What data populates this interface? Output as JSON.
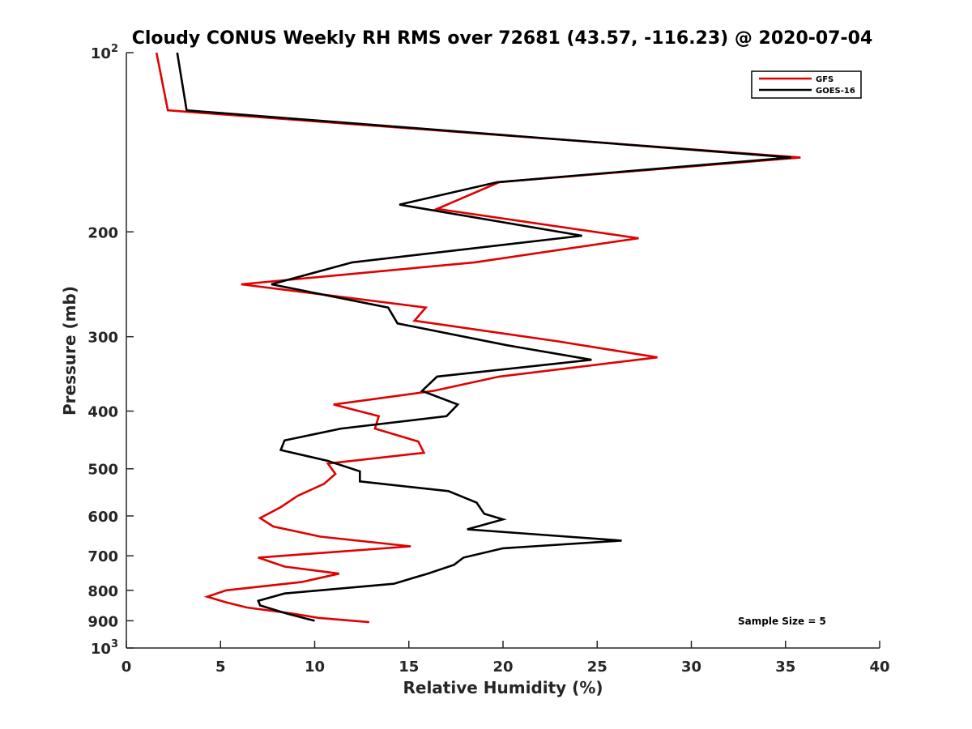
{
  "chart_data": {
    "type": "line",
    "title": "Cloudy CONUS Weekly RH RMS over 72681 (43.57, -116.23) @ 2020-07-04",
    "xlabel": "Relative Humidity (%)",
    "ylabel": "Pressure (mb)",
    "xlim": [
      0,
      40
    ],
    "ylim": [
      100,
      1000
    ],
    "y_scale": "log",
    "y_reversed": true,
    "grid": false,
    "legend_position": "top-right",
    "x_ticks": [
      0,
      5,
      10,
      15,
      20,
      25,
      30,
      35,
      40
    ],
    "y_ticks": [
      {
        "value": 100,
        "label": "10",
        "sup": "2"
      },
      {
        "value": 200,
        "label": "200",
        "sup": ""
      },
      {
        "value": 300,
        "label": "300",
        "sup": ""
      },
      {
        "value": 400,
        "label": "400",
        "sup": ""
      },
      {
        "value": 500,
        "label": "500",
        "sup": ""
      },
      {
        "value": 600,
        "label": "600",
        "sup": ""
      },
      {
        "value": 700,
        "label": "700",
        "sup": ""
      },
      {
        "value": 800,
        "label": "800",
        "sup": ""
      },
      {
        "value": 900,
        "label": "900",
        "sup": ""
      },
      {
        "value": 1000,
        "label": "10",
        "sup": "3"
      }
    ],
    "series": [
      {
        "name": "GFS",
        "color": "#e00000",
        "points": [
          [
            1.6,
            100
          ],
          [
            2.2,
            125
          ],
          [
            35.8,
            150
          ],
          [
            19.8,
            165
          ],
          [
            16.5,
            183
          ],
          [
            27.2,
            205
          ],
          [
            18.5,
            225
          ],
          [
            6.1,
            245
          ],
          [
            15.9,
            268
          ],
          [
            15.3,
            282
          ],
          [
            22.8,
            305
          ],
          [
            28.2,
            325
          ],
          [
            19.8,
            350
          ],
          [
            16.3,
            370
          ],
          [
            11.0,
            390
          ],
          [
            13.4,
            408
          ],
          [
            13.2,
            428
          ],
          [
            15.5,
            450
          ],
          [
            15.8,
            470
          ],
          [
            10.7,
            490
          ],
          [
            11.1,
            510
          ],
          [
            10.5,
            530
          ],
          [
            9.1,
            555
          ],
          [
            8.2,
            580
          ],
          [
            7.1,
            605
          ],
          [
            7.8,
            625
          ],
          [
            10.3,
            650
          ],
          [
            15.1,
            675
          ],
          [
            7.0,
            705
          ],
          [
            8.4,
            730
          ],
          [
            11.3,
            750
          ],
          [
            9.3,
            775
          ],
          [
            5.3,
            800
          ],
          [
            4.3,
            820
          ],
          [
            5.3,
            838
          ],
          [
            6.4,
            855
          ],
          [
            8.8,
            875
          ],
          [
            10.2,
            890
          ],
          [
            12.9,
            905
          ]
        ]
      },
      {
        "name": "GOES-16",
        "color": "#000000",
        "points": [
          [
            2.7,
            100
          ],
          [
            3.2,
            125
          ],
          [
            35.3,
            150
          ],
          [
            19.7,
            165
          ],
          [
            14.5,
            180
          ],
          [
            24.2,
            203
          ],
          [
            12.0,
            225
          ],
          [
            7.7,
            245
          ],
          [
            13.9,
            268
          ],
          [
            14.4,
            285
          ],
          [
            20.2,
            310
          ],
          [
            24.7,
            328
          ],
          [
            16.5,
            350
          ],
          [
            15.7,
            370
          ],
          [
            17.6,
            390
          ],
          [
            17.0,
            408
          ],
          [
            11.4,
            428
          ],
          [
            8.4,
            448
          ],
          [
            8.2,
            465
          ],
          [
            10.7,
            485
          ],
          [
            12.4,
            505
          ],
          [
            12.4,
            525
          ],
          [
            17.1,
            545
          ],
          [
            18.6,
            570
          ],
          [
            19.0,
            595
          ],
          [
            20.0,
            608
          ],
          [
            18.1,
            632
          ],
          [
            26.3,
            660
          ],
          [
            20.0,
            680
          ],
          [
            17.9,
            705
          ],
          [
            17.4,
            725
          ],
          [
            16.0,
            750
          ],
          [
            14.2,
            780
          ],
          [
            8.4,
            810
          ],
          [
            7.0,
            833
          ],
          [
            7.1,
            848
          ],
          [
            8.5,
            875
          ],
          [
            10.0,
            900
          ]
        ]
      }
    ],
    "annotations": [
      "Sample Size = 5"
    ]
  }
}
